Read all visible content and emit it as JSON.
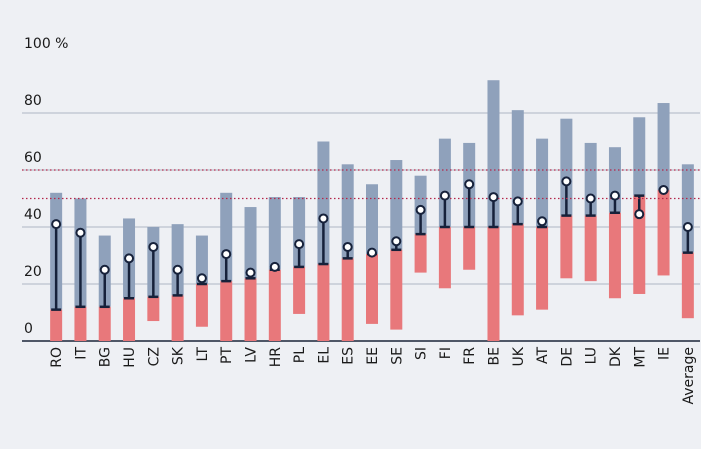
{
  "chart_data": {
    "type": "range_bar",
    "categories": [
      "RO",
      "IT",
      "BG",
      "HU",
      "CZ",
      "SK",
      "LT",
      "PT",
      "LV",
      "HR",
      "PL",
      "EL",
      "ES",
      "EE",
      "SE",
      "SI",
      "FI",
      "FR",
      "BE",
      "UK",
      "AT",
      "DE",
      "LU",
      "DK",
      "MT",
      "IE",
      "Average"
    ],
    "series": [
      {
        "color": "#e8787b",
        "start": [
          0,
          0,
          0,
          0,
          7,
          0,
          5,
          0,
          0,
          0,
          9.5,
          0,
          0,
          6,
          4,
          24,
          18.5,
          25,
          0,
          9,
          11,
          22,
          21,
          15,
          16.5,
          23,
          8
        ],
        "values": [
          11,
          12,
          12,
          15,
          15.5,
          16,
          20,
          21,
          22,
          25,
          26,
          27,
          29,
          30.5,
          32,
          37.5,
          40,
          40,
          40,
          41,
          40,
          44,
          44,
          45,
          51,
          53,
          31
        ]
      },
      {
        "color": "#8fa1bb",
        "values": [
          52,
          50,
          37,
          43,
          40,
          41,
          37,
          52,
          47,
          50.5,
          50.5,
          70,
          62,
          55,
          63.5,
          58,
          71,
          69.5,
          91.5,
          81,
          71,
          78,
          69.5,
          68,
          78.5,
          83.5,
          62
        ]
      }
    ],
    "markers": {
      "color": "#16213a",
      "values": [
        41,
        38,
        25,
        29,
        33,
        25,
        22,
        30.5,
        24,
        26,
        34,
        43,
        33,
        31,
        35,
        46,
        51,
        55,
        50.5,
        49,
        42,
        56,
        50,
        51,
        44.5,
        53,
        40
      ]
    },
    "reference_lines": {
      "color": "#b3264a",
      "values": [
        60,
        50
      ]
    },
    "ylim": [
      0,
      100
    ],
    "yticks": [
      0,
      20,
      40,
      60,
      80,
      {
        "value": 100,
        "label": "100 %"
      }
    ],
    "grid": true
  }
}
